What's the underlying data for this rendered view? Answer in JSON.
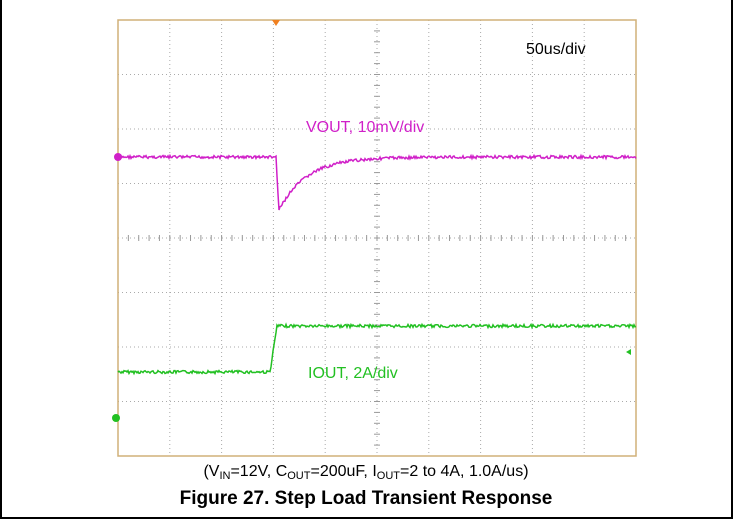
{
  "scope": {
    "timebase": "50us/div",
    "vout_label": "VOUT, 10mV/div",
    "iout_label": "IOUT, 2A/div"
  },
  "caption": {
    "parts": [
      {
        "text": "(V"
      },
      {
        "text": "IN",
        "sub": true
      },
      {
        "text": "=12V, C"
      },
      {
        "text": "OUT",
        "sub": true
      },
      {
        "text": "=200uF, I"
      },
      {
        "text": "OUT",
        "sub": true
      },
      {
        "text": "=2 to 4A, 1.0A/us)"
      }
    ]
  },
  "title": "Figure 27. Step Load Transient Response"
}
